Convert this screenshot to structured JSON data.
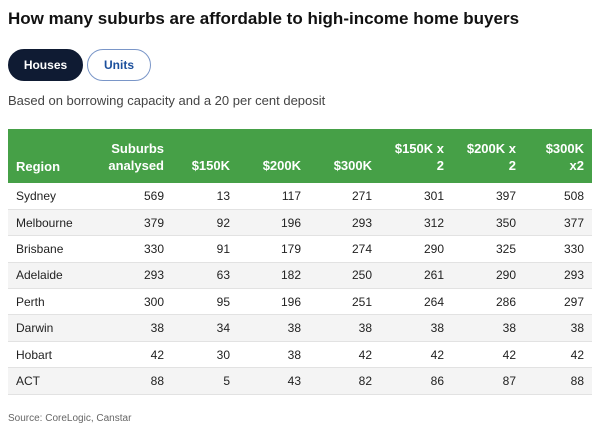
{
  "title": "How many suburbs are affordable to high-income home buyers",
  "toggles": [
    {
      "label": "Houses",
      "active": true
    },
    {
      "label": "Units",
      "active": false
    }
  ],
  "subtitle": "Based on borrowing capacity and a 20 per cent deposit",
  "table": {
    "headers": {
      "region": "Region",
      "analysed": "Suburbs analysed",
      "h150": "$150K",
      "h200": "$200K",
      "h300": "$300K",
      "h150x2": "$150K x 2",
      "h200x2": "$200K x 2",
      "h300x2": "$300K x2"
    },
    "rows": [
      [
        "Sydney",
        "569",
        "13",
        "117",
        "271",
        "301",
        "397",
        "508"
      ],
      [
        "Melbourne",
        "379",
        "92",
        "196",
        "293",
        "312",
        "350",
        "377"
      ],
      [
        "Brisbane",
        "330",
        "91",
        "179",
        "274",
        "290",
        "325",
        "330"
      ],
      [
        "Adelaide",
        "293",
        "63",
        "182",
        "250",
        "261",
        "290",
        "293"
      ],
      [
        "Perth",
        "300",
        "95",
        "196",
        "251",
        "264",
        "286",
        "297"
      ],
      [
        "Darwin",
        "38",
        "34",
        "38",
        "38",
        "38",
        "38",
        "38"
      ],
      [
        "Hobart",
        "42",
        "30",
        "38",
        "42",
        "42",
        "42",
        "42"
      ],
      [
        "ACT",
        "88",
        "5",
        "43",
        "82",
        "86",
        "87",
        "88"
      ]
    ]
  },
  "source": "Source: CoreLogic, Canstar",
  "colors": {
    "header_green": "#46a047",
    "active_toggle": "#0f1b33",
    "link_blue": "#1b4f9c"
  }
}
